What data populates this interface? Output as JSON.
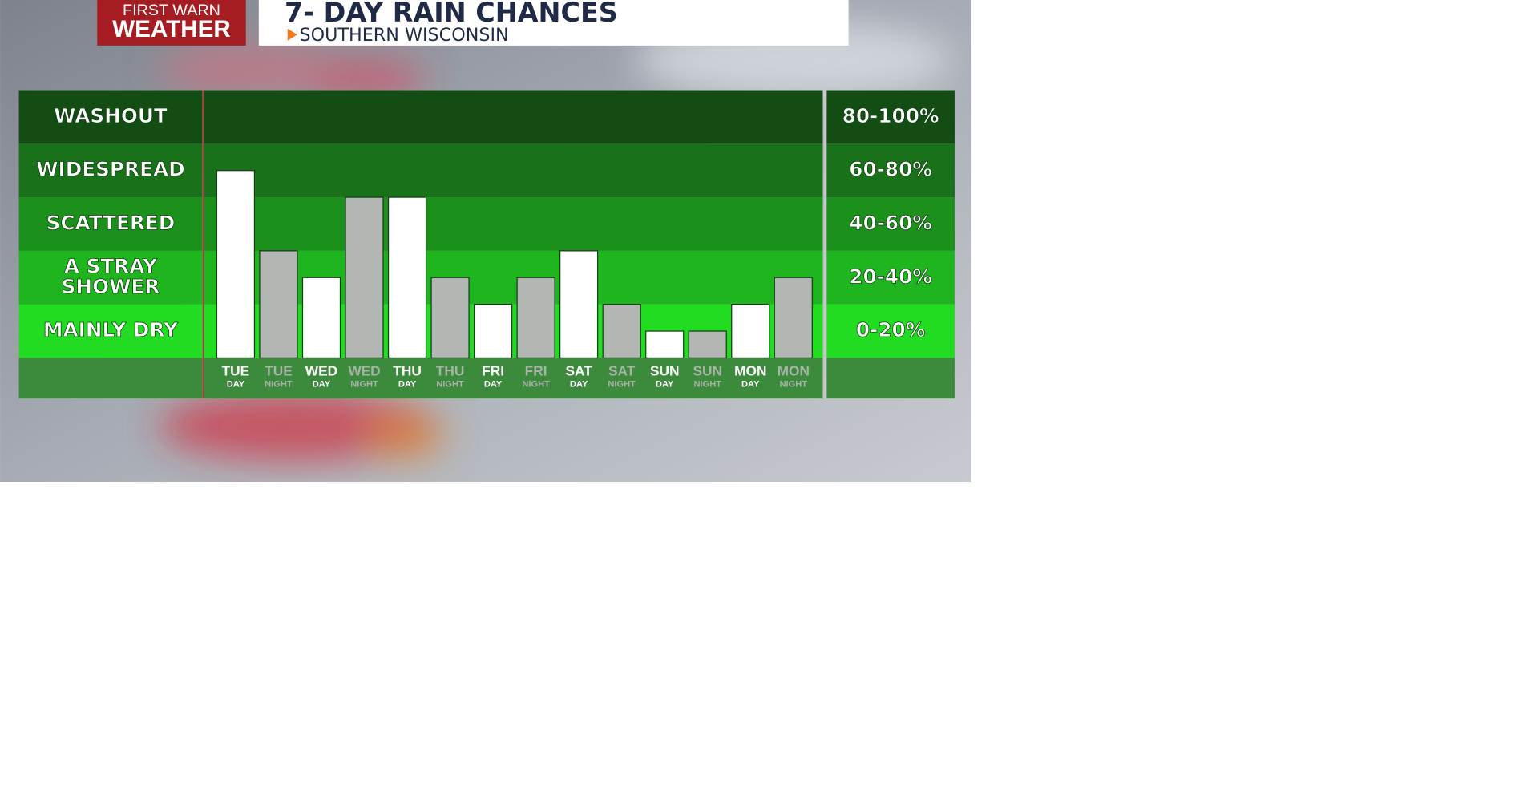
{
  "logo": {
    "lines": [
      "FIRST WARN",
      "WEATHER"
    ]
  },
  "chart_data": {
    "type": "bar",
    "title": "7- DAY RAIN CHANCES",
    "subtitle": "SOUTHERN WISCONSIN",
    "categories": [
      "TUE",
      "TUE",
      "WED",
      "WED",
      "THU",
      "THU",
      "FRI",
      "FRI",
      "SAT",
      "SAT",
      "SUN",
      "SUN",
      "MON",
      "MON"
    ],
    "sublabels": [
      "DAY",
      "NIGHT",
      "DAY",
      "NIGHT",
      "DAY",
      "NIGHT",
      "DAY",
      "NIGHT",
      "DAY",
      "NIGHT",
      "DAY",
      "NIGHT",
      "DAY",
      "NIGHT"
    ],
    "values": [
      70,
      40,
      30,
      60,
      60,
      30,
      20,
      30,
      40,
      20,
      10,
      10,
      20,
      30
    ],
    "bar_colors": [
      "#ffffff",
      "#b3b7b3",
      "#ffffff",
      "#b3b7b3",
      "#ffffff",
      "#b3b7b3",
      "#ffffff",
      "#b3b7b3",
      "#ffffff",
      "#b3b7b3",
      "#ffffff",
      "#b3b7b3",
      "#ffffff",
      "#b3b7b3"
    ],
    "label_colors": [
      "#ffffff",
      "#a9b3a9",
      "#ffffff",
      "#a9b3a9",
      "#ffffff",
      "#a9b3a9",
      "#ffffff",
      "#a9b3a9",
      "#ffffff",
      "#a9b3a9",
      "#ffffff",
      "#a9b3a9",
      "#ffffff",
      "#a9b3a9"
    ],
    "ylim": [
      0,
      100
    ],
    "yticks": [
      0,
      20,
      40,
      60,
      80,
      100
    ],
    "bands": [
      {
        "label": [
          "MAINLY DRY"
        ],
        "range": "0-20%",
        "color": "#22dc22"
      },
      {
        "label": [
          "A STRAY",
          "SHOWER"
        ],
        "range": "20-40%",
        "color": "#1fb51f"
      },
      {
        "label": [
          "SCATTERED"
        ],
        "range": "40-60%",
        "color": "#1b901b"
      },
      {
        "label": [
          "WIDESPREAD"
        ],
        "range": "60-80%",
        "color": "#197219"
      },
      {
        "label": [
          "WASHOUT"
        ],
        "range": "80-100%",
        "color": "#134d13"
      }
    ]
  }
}
